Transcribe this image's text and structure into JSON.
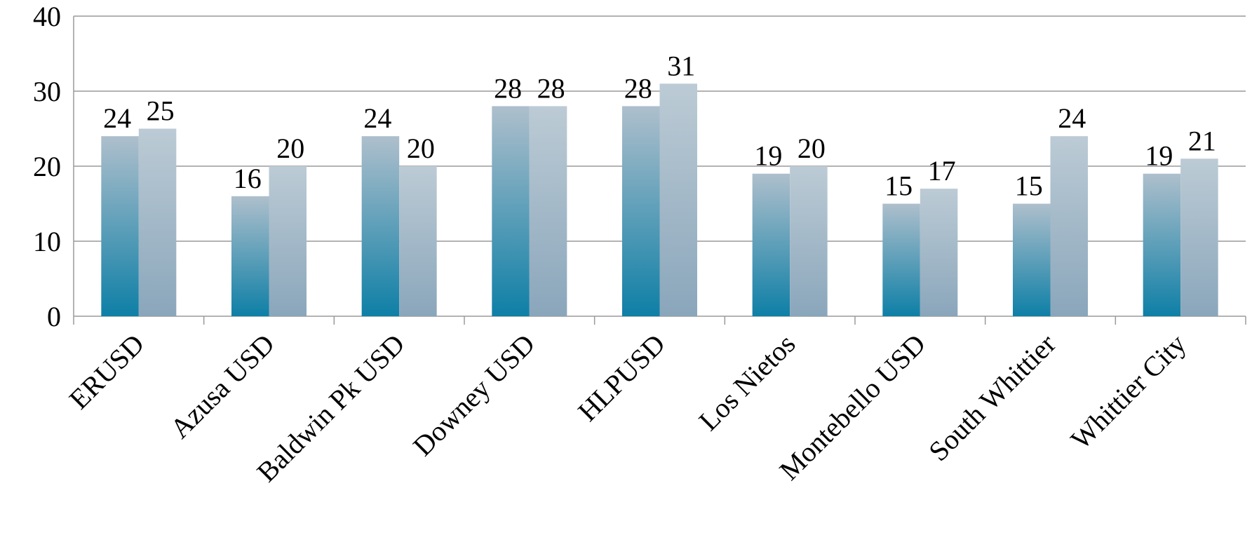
{
  "chart_data": {
    "type": "bar",
    "categories": [
      "ERUSD",
      "Azusa USD",
      "Baldwin Pk USD",
      "Downey USD",
      "HLPUSD",
      "Los Nietos",
      "Montebello USD",
      "South Whittier",
      "Whittier City"
    ],
    "series": [
      {
        "color": "#0e7fa6",
        "values": [
          24,
          16,
          24,
          28,
          28,
          19,
          15,
          15,
          19
        ]
      },
      {
        "color": "#8aa6bb",
        "values": [
          25,
          20,
          20,
          28,
          31,
          20,
          17,
          24,
          21
        ]
      }
    ],
    "ylim": [
      0,
      40
    ],
    "yticks": [
      0,
      10,
      20,
      30,
      40
    ],
    "grid": true
  }
}
